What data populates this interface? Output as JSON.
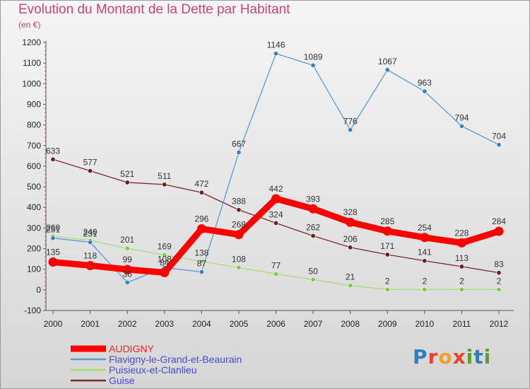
{
  "title": "Evolution du Montant de la Dette par Habitant",
  "unit": "(en €)",
  "logo": {
    "text": "Proxiti",
    "letters": [
      "P",
      "r",
      "o",
      "x",
      "i",
      "t",
      "i"
    ],
    "colors": [
      "#2d7fc1",
      "#e8442d",
      "#f0a02a",
      "#e8442d",
      "#5aa02c",
      "#2d7fc1",
      "#5aa02c"
    ]
  },
  "chart_data": {
    "type": "line",
    "title": "Evolution du Montant de la Dette par Habitant",
    "ylabel": "(en €)",
    "ylim": [
      -100,
      1200
    ],
    "yticks": [
      -100,
      0,
      100,
      200,
      300,
      400,
      500,
      600,
      700,
      800,
      900,
      1000,
      1100,
      1200
    ],
    "x": [
      "2000",
      "2001",
      "2002",
      "2003",
      "2004",
      "2005",
      "2006",
      "2007",
      "2008",
      "2009",
      "2010",
      "2011",
      "2012"
    ],
    "grid": false,
    "legend_position": "bottom-left",
    "series": [
      {
        "name": "Guise",
        "color": "#7a2a2a",
        "marker": "#6b2020",
        "values": [
          633,
          577,
          521,
          511,
          472,
          388,
          324,
          262,
          206,
          171,
          141,
          113,
          83
        ]
      },
      {
        "name": "Puisieux-et-Clanlieu",
        "color": "#a8dc78",
        "marker": "#7ec84a",
        "values": [
          260,
          240,
          201,
          169,
          138,
          108,
          77,
          50,
          21,
          2,
          2,
          2,
          2
        ]
      },
      {
        "name": "Flavigny-le-Grand-et-Beaurain",
        "color": "#5b9bd5",
        "marker": "#3a7fc0",
        "values": [
          251,
          231,
          36,
          108,
          87,
          667,
          1146,
          1089,
          776,
          1067,
          963,
          794,
          704
        ]
      },
      {
        "name": "AUDIGNY",
        "color": "#ff0000",
        "marker": "#ff0000",
        "values": [
          135,
          118,
          99,
          84,
          296,
          268,
          442,
          393,
          328,
          285,
          254,
          228,
          284
        ]
      }
    ]
  }
}
